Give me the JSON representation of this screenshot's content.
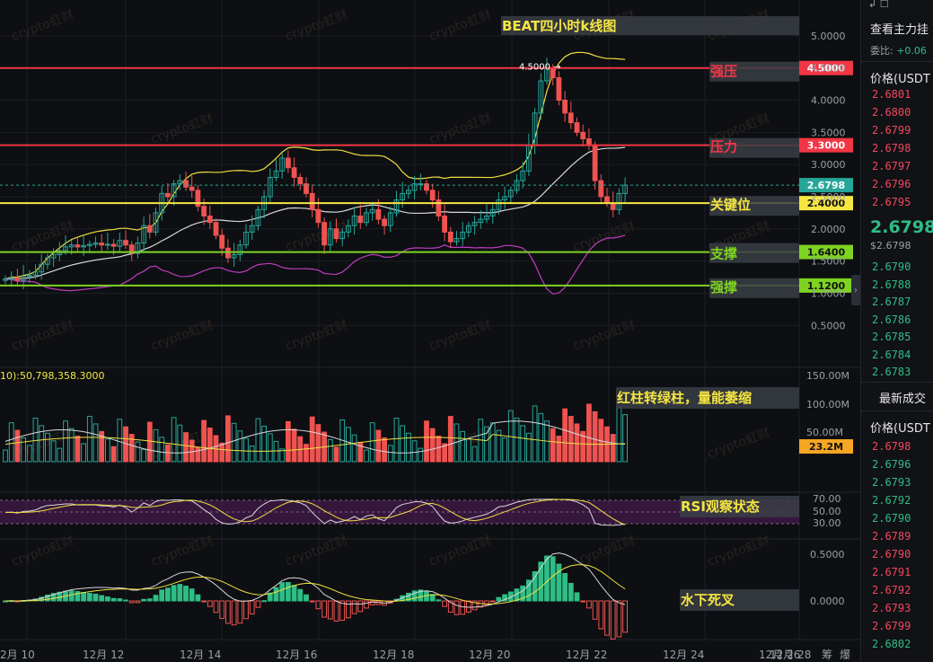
{
  "chart_title": "BEAT四小时k线图",
  "price_axis": {
    "ticks": [
      "5.0000",
      "4.5000",
      "4.0000",
      "3.5000",
      "3.0000",
      "2.5000",
      "2.0000",
      "1.5000",
      "1.0000",
      "0.5000"
    ],
    "range": [
      0.35,
      5.25
    ]
  },
  "date_axis": {
    "labels": [
      "2月 10",
      "12月 12",
      "12月 14",
      "12月 16",
      "12月 18",
      "12月 20",
      "12月 22",
      "12月 24",
      "12月 26",
      "12月 28"
    ],
    "corner_labels": [
      "筹",
      "爆"
    ]
  },
  "levels": [
    {
      "label": "强压",
      "value": 4.5,
      "price_tag": "4.5000",
      "color": "#f23645",
      "tag_bg": "#f23645",
      "label_color": "#f23645"
    },
    {
      "label": "压力",
      "value": 3.3,
      "price_tag": "3.3000",
      "color": "#f23645",
      "tag_bg": "#f23645",
      "label_color": "#f23645"
    },
    {
      "label": "关键位",
      "value": 2.4,
      "price_tag": "2.4000",
      "color": "#f5e642",
      "tag_bg": "#f5e642",
      "label_color": "#f5e642"
    },
    {
      "label": "支撑",
      "value": 1.64,
      "price_tag": "1.6400",
      "color": "#7ed321",
      "tag_bg": "#7ed321",
      "label_color": "#7ed321"
    },
    {
      "label": "强撑",
      "value": 1.12,
      "price_tag": "1.1200",
      "color": "#7ed321",
      "tag_bg": "#7ed321",
      "label_color": "#7ed321"
    }
  ],
  "current_price": {
    "value": 2.6798,
    "label": "2.6798"
  },
  "high_marker": "4.5000",
  "volume_panel": {
    "ma_label": "10):50,798,358.3000",
    "ticks": [
      "150.00M",
      "100.00M",
      "50.00M"
    ],
    "current_tag": "23.2M",
    "annotation": "红柱转绿柱，量能萎缩"
  },
  "rsi_panel": {
    "ticks": [
      "70.00",
      "50.00",
      "30.00"
    ],
    "annotation": "RSI观察状态"
  },
  "macd_panel": {
    "ticks": [
      "0.5000",
      "0.0000"
    ],
    "annotation": "水下死叉"
  },
  "watermark": "crypto虹财",
  "colors": {
    "up": "#26a69a",
    "down": "#ef5350",
    "bg": "#0d0f12",
    "grid": "#1c1f26"
  },
  "right_panel": {
    "top_title": "查看主力挂",
    "ratio_label": "委比:",
    "ratio_value": "+0.06",
    "price_header": "价格(USDT",
    "asks": [
      "2.6801",
      "2.6800",
      "2.6799",
      "2.6798",
      "2.6797",
      "2.6796",
      "2.6795"
    ],
    "last_price": "2.6798",
    "last_price_sub": "$2.6798",
    "bids": [
      "2.6790",
      "2.6788",
      "2.6787",
      "2.6786",
      "2.6785",
      "2.6784",
      "2.6783"
    ],
    "trades_title": "最新成交",
    "trades_header": "价格(USDT",
    "trades": [
      {
        "p": "2.6798",
        "c": "down"
      },
      {
        "p": "2.6796",
        "c": "up"
      },
      {
        "p": "2.6793",
        "c": "up"
      },
      {
        "p": "2.6792",
        "c": "up"
      },
      {
        "p": "2.6790",
        "c": "up"
      },
      {
        "p": "2.6789",
        "c": "down"
      },
      {
        "p": "2.6790",
        "c": "down"
      },
      {
        "p": "2.6791",
        "c": "down"
      },
      {
        "p": "2.6792",
        "c": "down"
      },
      {
        "p": "2.6793",
        "c": "down"
      },
      {
        "p": "2.6799",
        "c": "down"
      },
      {
        "p": "2.6802",
        "c": "up"
      }
    ]
  },
  "chart_data": {
    "type": "candlestick",
    "title": "BEAT四小时k线图",
    "interval": "4h",
    "period": "12月 10 – 12月 24",
    "ylim": [
      0.35,
      5.25
    ],
    "ohlc_description": "approximate 4h candles read from chart",
    "closes": [
      1.22,
      1.24,
      1.2,
      1.26,
      1.28,
      1.33,
      1.45,
      1.55,
      1.6,
      1.66,
      1.72,
      1.75,
      1.72,
      1.74,
      1.76,
      1.78,
      1.75,
      1.76,
      1.73,
      1.82,
      1.75,
      1.62,
      1.78,
      2.05,
      1.95,
      2.25,
      2.55,
      2.5,
      2.7,
      2.75,
      2.65,
      2.6,
      2.35,
      2.2,
      2.1,
      1.9,
      1.7,
      1.55,
      1.6,
      1.75,
      1.95,
      2.05,
      2.3,
      2.5,
      2.8,
      2.9,
      3.1,
      2.95,
      2.8,
      2.7,
      2.55,
      2.3,
      2.1,
      1.75,
      2.0,
      1.85,
      1.95,
      2.05,
      2.2,
      2.1,
      2.25,
      2.3,
      2.15,
      2.05,
      2.25,
      2.45,
      2.55,
      2.6,
      2.7,
      2.7,
      2.6,
      2.45,
      2.2,
      1.95,
      1.8,
      1.85,
      1.95,
      2.05,
      2.1,
      2.15,
      2.2,
      2.3,
      2.45,
      2.5,
      2.6,
      2.75,
      2.9,
      3.3,
      3.8,
      4.3,
      4.5,
      4.35,
      4.0,
      3.8,
      3.65,
      3.5,
      3.4,
      3.3,
      2.75,
      2.5,
      2.4,
      2.3,
      2.55,
      2.68
    ],
    "bollinger": {
      "upper_range": [
        1.55,
        4.5
      ],
      "lower_range": [
        0.65,
        1.95
      ]
    },
    "volume_ticks": [
      "150.00M",
      "100.00M",
      "50.00M"
    ],
    "volume_current": "23.2M",
    "rsi_ticks": [
      "70.00",
      "50.00",
      "30.00"
    ],
    "macd_ticks": [
      "0.5000",
      "0.0000"
    ]
  }
}
